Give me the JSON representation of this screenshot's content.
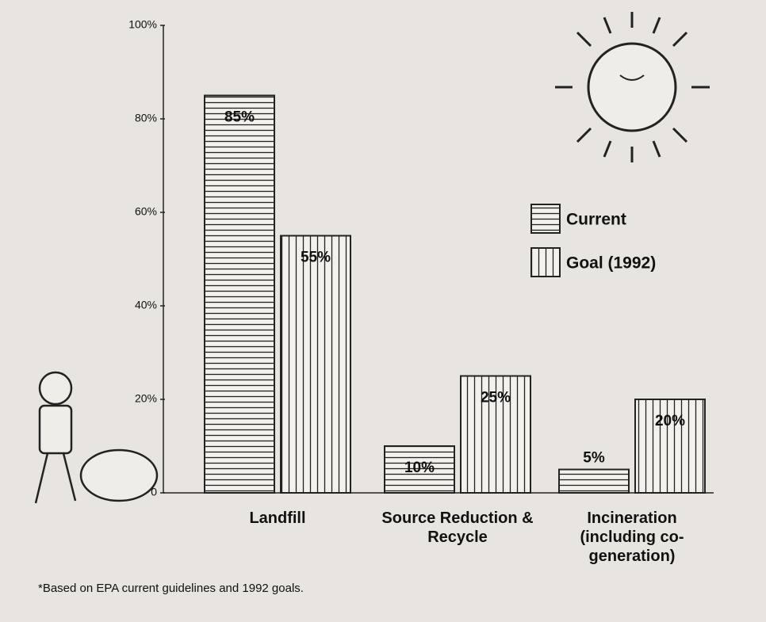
{
  "chart_data": {
    "type": "bar",
    "categories": [
      "Landfill",
      "Source Reduction & Recycle",
      "Incineration (including co-generation)"
    ],
    "series": [
      {
        "name": "Current",
        "color": "#222222",
        "values": [
          85,
          10,
          5
        ],
        "value_labels": [
          "85%",
          "10%",
          "5%"
        ]
      },
      {
        "name": "Goal (1992)",
        "color": "#222222",
        "values": [
          55,
          25,
          20
        ],
        "value_labels": [
          "55%",
          "25%",
          "20%"
        ]
      }
    ],
    "ylim": [
      0,
      100
    ],
    "yticks": [
      0,
      {
        "value": 20,
        "label": "20%"
      },
      {
        "value": 40,
        "label": "40%"
      },
      {
        "value": 60,
        "label": "60%"
      },
      {
        "value": 80,
        "label": "80%"
      },
      {
        "value": 100,
        "label": "100%"
      }
    ],
    "footnote": "*Based on EPA current guidelines and 1992 goals."
  }
}
